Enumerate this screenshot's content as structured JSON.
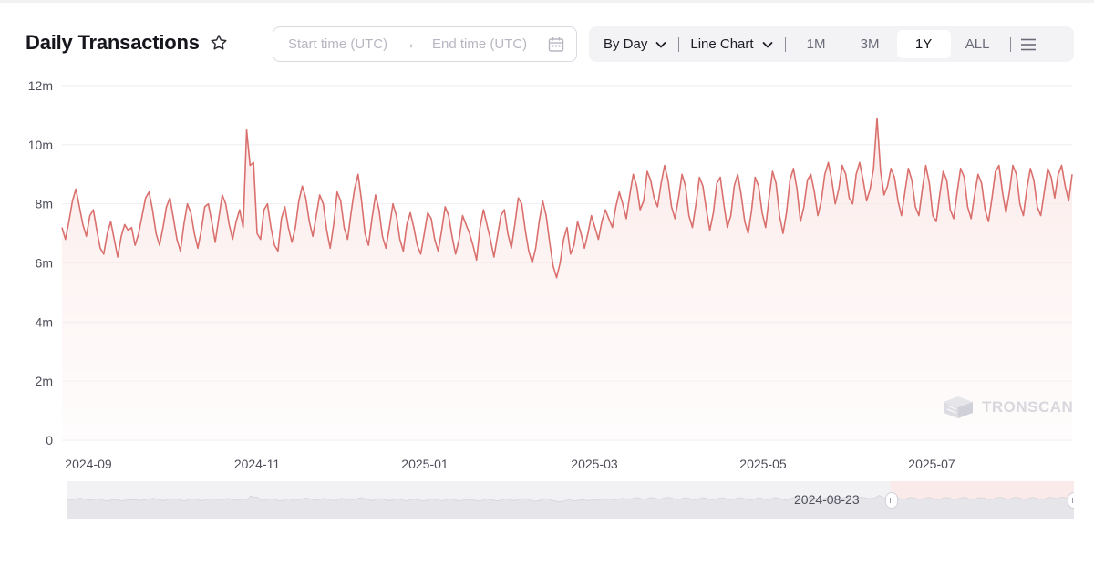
{
  "header": {
    "title": "Daily Transactions",
    "favorite_icon": "star-icon"
  },
  "date_range": {
    "start_placeholder": "Start time (UTC)",
    "arrow": "→",
    "end_placeholder": "End time (UTC)",
    "icon": "calendar-icon"
  },
  "toolbar": {
    "granularity": "By Day",
    "chart_type": "Line Chart",
    "ranges": [
      "1M",
      "3M",
      "1Y",
      "ALL"
    ],
    "active_range": "1Y",
    "menu_icon": "menu-icon"
  },
  "watermark": "TRONSCAN",
  "navigator": {
    "start_label": "2024-08-23"
  },
  "colors": {
    "line": "#d9706d",
    "area_top": "#fbe5e4",
    "navigator_selection": "#fbeaea"
  },
  "chart_data": {
    "type": "line",
    "title": "Daily Transactions",
    "ylim": [
      0,
      12000000
    ],
    "yticks": [
      "0",
      "2m",
      "4m",
      "6m",
      "8m",
      "10m",
      "12m"
    ],
    "xticks": [
      "2024-09",
      "2024-11",
      "2025-01",
      "2025-03",
      "2025-05",
      "2025-07"
    ],
    "legend": "none",
    "grid": "horizontal",
    "x_start": "2024-08-23",
    "x_end": "2025-08-22",
    "series": [
      {
        "values_millions": [
          7.2,
          6.8,
          7.4,
          8.1,
          8.5,
          7.9,
          7.3,
          6.9,
          7.6,
          7.8,
          7.1,
          6.5,
          6.3,
          7.0,
          7.4,
          6.8,
          6.2,
          6.9,
          7.3,
          7.1,
          7.2,
          6.6,
          7.0,
          7.6,
          8.2,
          8.4,
          7.8,
          7.0,
          6.6,
          7.2,
          7.9,
          8.2,
          7.5,
          6.8,
          6.4,
          7.3,
          8.0,
          7.7,
          7.0,
          6.5,
          7.1,
          7.9,
          8.0,
          7.4,
          6.7,
          7.5,
          8.3,
          8.0,
          7.3,
          6.8,
          7.4,
          7.8,
          7.2,
          10.5,
          9.3,
          9.4,
          7.0,
          6.8,
          7.8,
          8.0,
          7.2,
          6.6,
          6.4,
          7.5,
          7.9,
          7.2,
          6.7,
          7.2,
          8.1,
          8.6,
          8.2,
          7.4,
          6.9,
          7.6,
          8.3,
          8.0,
          7.1,
          6.5,
          7.3,
          8.4,
          8.1,
          7.2,
          6.8,
          7.7,
          8.5,
          9.0,
          8.1,
          7.0,
          6.6,
          7.5,
          8.3,
          7.8,
          6.9,
          6.5,
          7.2,
          8.0,
          7.6,
          6.8,
          6.4,
          7.3,
          7.7,
          7.2,
          6.6,
          6.3,
          7.0,
          7.7,
          7.5,
          6.8,
          6.4,
          7.1,
          7.9,
          7.6,
          6.9,
          6.3,
          6.8,
          7.6,
          7.3,
          7.0,
          6.6,
          6.1,
          7.2,
          7.8,
          7.3,
          6.8,
          6.2,
          6.9,
          7.6,
          7.8,
          7.0,
          6.5,
          7.3,
          8.2,
          8.0,
          7.1,
          6.4,
          6.0,
          6.5,
          7.4,
          8.1,
          7.6,
          6.7,
          5.9,
          5.5,
          6.0,
          6.8,
          7.2,
          6.3,
          6.6,
          7.4,
          7.0,
          6.5,
          7.0,
          7.6,
          7.2,
          6.8,
          7.4,
          7.8,
          7.5,
          7.2,
          7.9,
          8.4,
          8.0,
          7.5,
          8.3,
          9.0,
          8.6,
          7.8,
          8.1,
          9.1,
          8.8,
          8.2,
          7.9,
          8.7,
          9.3,
          8.8,
          7.9,
          7.5,
          8.2,
          9.0,
          8.6,
          7.6,
          7.2,
          8.0,
          8.9,
          8.6,
          7.8,
          7.1,
          7.7,
          8.7,
          8.9,
          8.0,
          7.2,
          7.6,
          8.6,
          9.0,
          8.3,
          7.4,
          7.0,
          7.8,
          8.9,
          8.6,
          7.7,
          7.2,
          8.2,
          9.1,
          8.7,
          7.6,
          7.0,
          7.7,
          8.8,
          9.2,
          8.5,
          7.4,
          7.9,
          8.8,
          9.0,
          8.4,
          7.6,
          8.1,
          9.0,
          9.4,
          8.8,
          8.0,
          8.5,
          9.3,
          9.0,
          8.2,
          8.0,
          9.0,
          9.4,
          8.8,
          8.1,
          8.5,
          9.2,
          10.9,
          9.1,
          8.3,
          8.6,
          9.2,
          8.9,
          8.1,
          7.6,
          8.4,
          9.2,
          8.8,
          7.9,
          7.6,
          8.5,
          9.3,
          8.7,
          7.6,
          7.4,
          8.3,
          9.1,
          8.8,
          7.8,
          7.5,
          8.4,
          9.2,
          8.9,
          7.9,
          7.5,
          8.3,
          9.0,
          8.7,
          7.8,
          7.4,
          8.2,
          9.1,
          9.3,
          8.4,
          7.7,
          8.4,
          9.3,
          9.0,
          8.0,
          7.6,
          8.5,
          9.2,
          8.8,
          7.9,
          7.6,
          8.4,
          9.2,
          8.9,
          8.2,
          9.0,
          9.3,
          8.6,
          8.1,
          9.0
        ],
        "unit": "million transactions"
      }
    ]
  }
}
